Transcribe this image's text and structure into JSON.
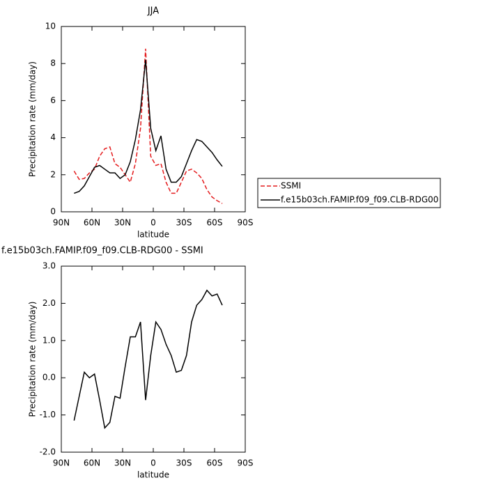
{
  "chart_data": [
    {
      "type": "line",
      "title": "JJA",
      "xlabel": "latitude",
      "ylabel": "Precipitation rate (mm/day)",
      "x": [
        77.5,
        72.5,
        67.5,
        62.5,
        57.5,
        52.5,
        47.5,
        42.5,
        37.5,
        32.5,
        27.5,
        22.5,
        17.5,
        12.5,
        7.5,
        2.5,
        -2.5,
        -7.5,
        -12.5,
        -17.5,
        -22.5,
        -27.5,
        -32.5,
        -37.5,
        -42.5,
        -47.5,
        -52.5,
        -57.5,
        -62.5,
        -67.5
      ],
      "series": [
        {
          "name": "SSMI",
          "color": "#e41a1c",
          "dash": true,
          "values": [
            2.2,
            1.75,
            1.8,
            2.1,
            2.3,
            3.0,
            3.4,
            3.5,
            2.6,
            2.4,
            2.0,
            1.6,
            2.6,
            4.5,
            8.8,
            3.0,
            2.5,
            2.6,
            1.6,
            1.0,
            1.0,
            1.6,
            2.2,
            2.3,
            2.1,
            1.8,
            1.2,
            0.8,
            0.6,
            0.45
          ]
        },
        {
          "name": "f.e15b03ch.FAMIP.f09_f09.CLB-RDG00",
          "color": "#000000",
          "dash": false,
          "values": [
            1.0,
            1.1,
            1.4,
            1.9,
            2.4,
            2.5,
            2.3,
            2.1,
            2.1,
            1.8,
            2.0,
            2.7,
            3.9,
            5.5,
            8.2,
            4.5,
            3.3,
            4.1,
            2.3,
            1.6,
            1.6,
            1.9,
            2.6,
            3.3,
            3.9,
            3.8,
            3.5,
            3.2,
            2.8,
            2.45
          ]
        }
      ],
      "xlim": [
        90,
        -90
      ],
      "xticks": [
        {
          "value": 90,
          "label": "90N"
        },
        {
          "value": 60,
          "label": "60N"
        },
        {
          "value": 30,
          "label": "30N"
        },
        0,
        {
          "value": -30,
          "label": "30S"
        },
        {
          "value": -60,
          "label": "60S"
        },
        {
          "value": -90,
          "label": "90S"
        }
      ],
      "ylim": [
        0,
        10
      ],
      "yticks": [
        0,
        2,
        4,
        6,
        8,
        10
      ],
      "legend": "right"
    },
    {
      "type": "line",
      "title": "f.e15b03ch.FAMIP.f09_f09.CLB-RDG00 - SSMI",
      "xlabel": "latitude",
      "ylabel": "Precipitation rate (mm/day)",
      "x": [
        77.5,
        72.5,
        67.5,
        62.5,
        57.5,
        52.5,
        47.5,
        42.5,
        37.5,
        32.5,
        27.5,
        22.5,
        17.5,
        12.5,
        7.5,
        2.5,
        -2.5,
        -7.5,
        -12.5,
        -17.5,
        -22.5,
        -27.5,
        -32.5,
        -37.5,
        -42.5,
        -47.5,
        -52.5,
        -57.5,
        -62.5,
        -67.5
      ],
      "series": [
        {
          "color": "#000000",
          "dash": false,
          "values": [
            -1.15,
            -0.5,
            0.15,
            0.0,
            0.1,
            -0.6,
            -1.35,
            -1.2,
            -0.5,
            -0.55,
            0.3,
            1.1,
            1.1,
            1.5,
            -0.6,
            0.6,
            1.5,
            1.3,
            0.9,
            0.6,
            0.15,
            0.2,
            0.6,
            1.5,
            1.95,
            2.1,
            2.35,
            2.2,
            2.25,
            1.95
          ]
        }
      ],
      "xlim": [
        90,
        -90
      ],
      "xticks": [
        {
          "value": 90,
          "label": "90N"
        },
        {
          "value": 60,
          "label": "60N"
        },
        {
          "value": 30,
          "label": "30N"
        },
        0,
        {
          "value": -30,
          "label": "30S"
        },
        {
          "value": -60,
          "label": "60S"
        },
        {
          "value": -90,
          "label": "90S"
        }
      ],
      "ylim": [
        -2,
        3
      ],
      "yticks": [
        {
          "value": -2,
          "label": "-2.0"
        },
        {
          "value": -1,
          "label": "-1.0"
        },
        {
          "value": 0,
          "label": "0.0"
        },
        {
          "value": 1,
          "label": "1.0"
        },
        {
          "value": 2,
          "label": "2.0"
        },
        {
          "value": 3,
          "label": "3.0"
        }
      ]
    }
  ]
}
